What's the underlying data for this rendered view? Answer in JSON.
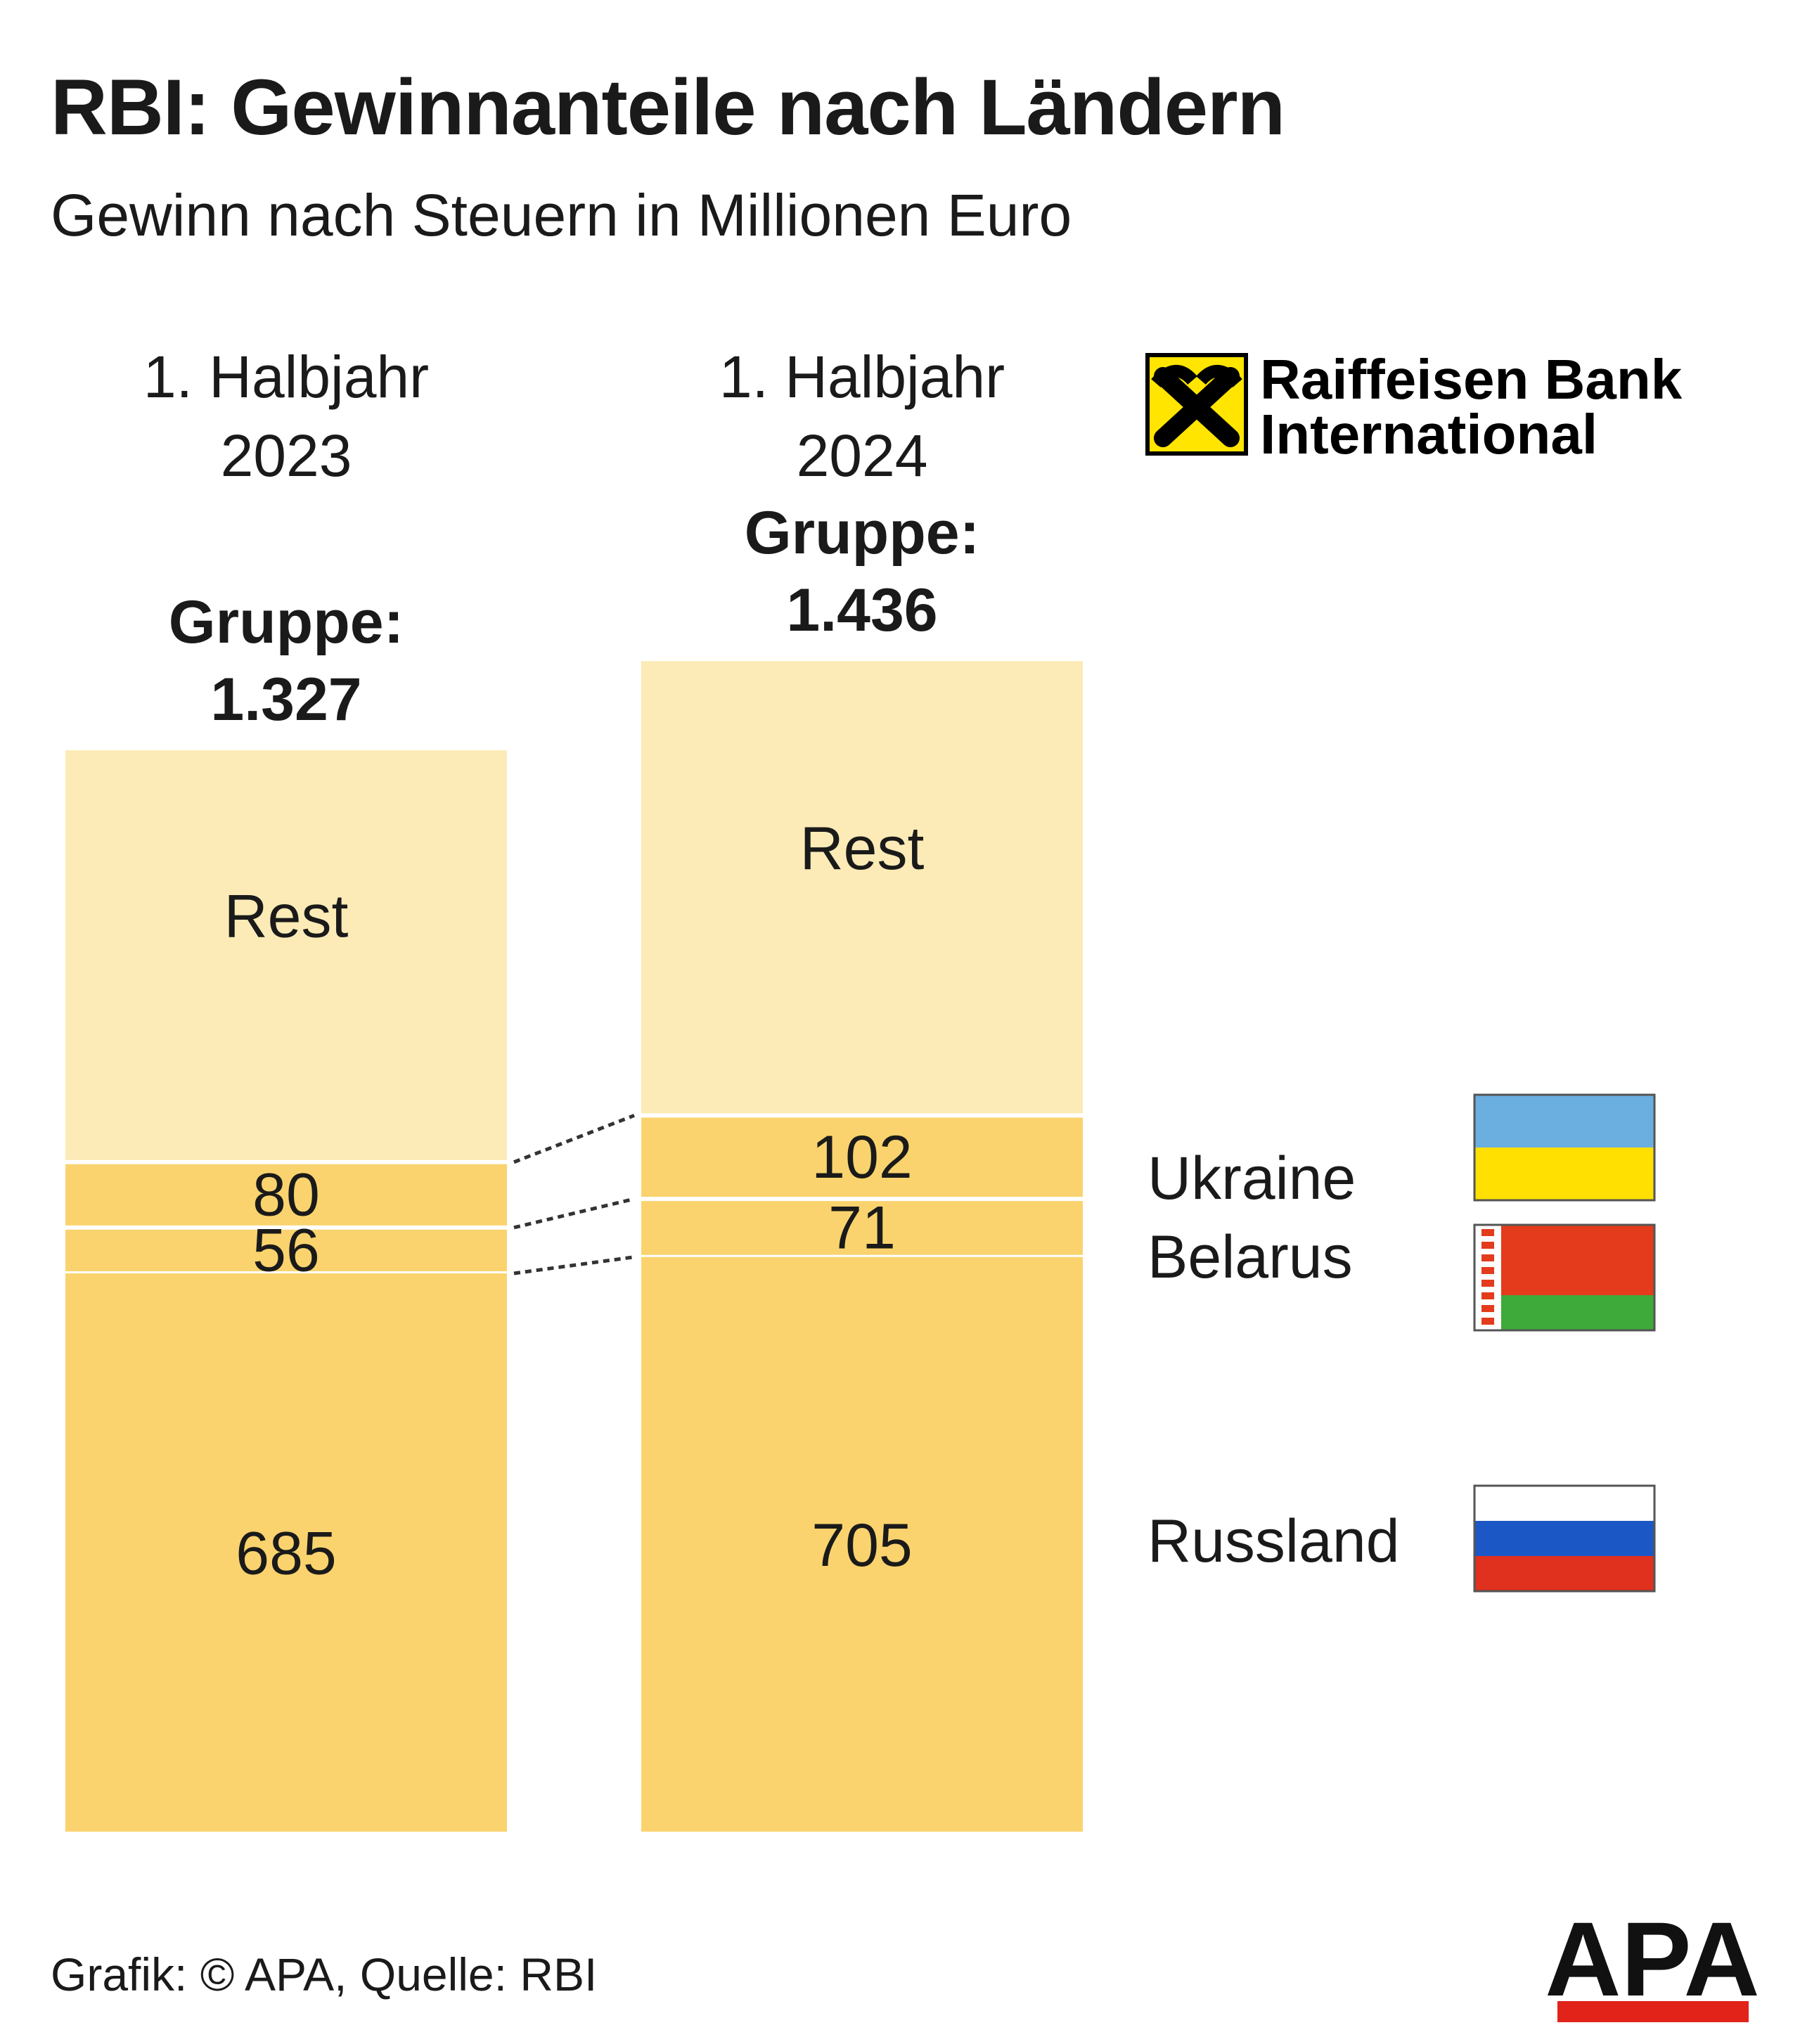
{
  "title": "RBI: Gewinnanteile nach Ländern",
  "subtitle": "Gewinn nach Steuern in Millionen Euro",
  "logo": {
    "name_line1": "Raiffeisen Bank",
    "name_line2": "International",
    "icon": "raiffeisen-gable-cross-icon",
    "colors": {
      "yellow": "#FFE500",
      "black": "#000000"
    }
  },
  "footer": {
    "credit": "Grafik: © APA, Quelle: RBI",
    "apa_logo_text": "APA"
  },
  "colors": {
    "rest": "#FCEBB6",
    "country": "#FAD36E",
    "separator": "#FFFFFF",
    "connector": "#333333"
  },
  "chart_data": {
    "type": "bar",
    "stacked": true,
    "unit": "Millionen Euro",
    "categories": [
      {
        "line1": "1. Halbjahr",
        "line2": "2023"
      },
      {
        "line1": "1. Halbjahr",
        "line2": "2024"
      }
    ],
    "totals": [
      {
        "label": "Gruppe:",
        "value": 1327,
        "display": "1.327"
      },
      {
        "label": "Gruppe:",
        "value": 1436,
        "display": "1.436"
      }
    ],
    "series": [
      {
        "name": "Russland",
        "values": [
          685,
          705
        ],
        "labels": [
          "685",
          "705"
        ],
        "flag": "russia-flag-icon",
        "flag_colors": [
          "#FFFFFF",
          "#1C57C6",
          "#E0301E"
        ]
      },
      {
        "name": "Belarus",
        "values": [
          56,
          71
        ],
        "labels": [
          "56",
          "71"
        ],
        "flag": "belarus-flag-icon",
        "flag_colors": [
          "#E33B1C",
          "#3DAA3A",
          "#FFFFFF"
        ]
      },
      {
        "name": "Ukraine",
        "values": [
          80,
          102
        ],
        "labels": [
          "80",
          "102"
        ],
        "flag": "ukraine-flag-icon",
        "flag_colors": [
          "#6BAEE0",
          "#FFE000"
        ]
      },
      {
        "name": "",
        "values": [
          506,
          558
        ],
        "labels": [
          "Rest",
          "Rest"
        ]
      }
    ]
  }
}
